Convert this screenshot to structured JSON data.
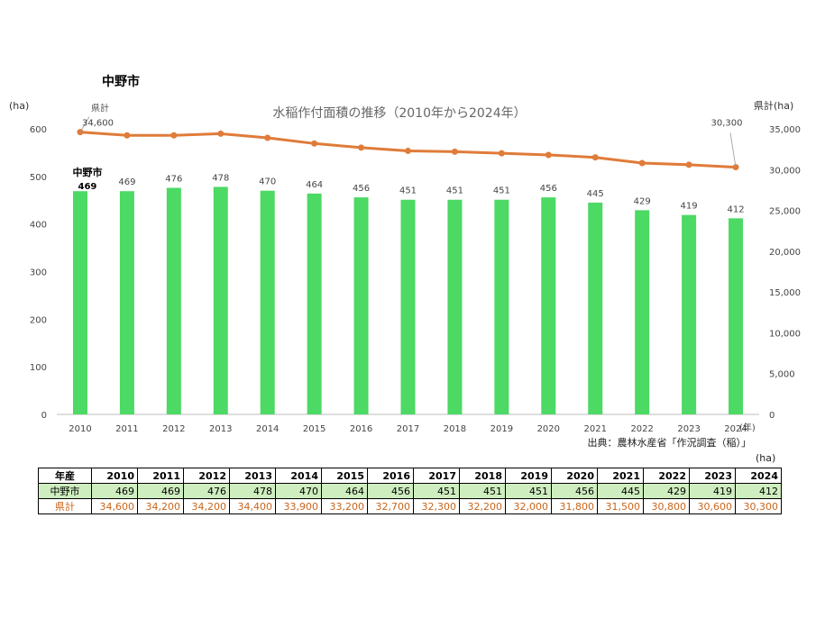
{
  "page": {
    "city_title": "中野市",
    "table_unit": "(ha)"
  },
  "chart_data": {
    "type": "bar+line",
    "title": "水稲作付面積の推移（2010年から2024年）",
    "categories": [
      "2010",
      "2011",
      "2012",
      "2013",
      "2014",
      "2015",
      "2016",
      "2017",
      "2018",
      "2019",
      "2020",
      "2021",
      "2022",
      "2023",
      "2024"
    ],
    "series": [
      {
        "name": "中野市",
        "type": "bar",
        "axis": "left",
        "color": "#4cd964",
        "values": [
          469,
          469,
          476,
          478,
          470,
          464,
          456,
          451,
          451,
          451,
          456,
          445,
          429,
          419,
          412
        ]
      },
      {
        "name": "県計",
        "type": "line",
        "axis": "right",
        "color": "#e07b39",
        "values": [
          34600,
          34200,
          34200,
          34400,
          33900,
          33200,
          32700,
          32300,
          32200,
          32000,
          31800,
          31500,
          30800,
          30600,
          30300
        ]
      }
    ],
    "left_axis": {
      "unit": "(ha)",
      "ylim": [
        0,
        600
      ],
      "ticks": [
        "0",
        "100",
        "200",
        "300",
        "400",
        "500",
        "600"
      ],
      "tick_values": [
        0,
        100,
        200,
        300,
        400,
        500,
        600
      ]
    },
    "right_axis": {
      "unit": "県計(ha)",
      "ylim": [
        0,
        35000
      ],
      "ticks": [
        "0",
        "5,000",
        "10,000",
        "15,000",
        "20,000",
        "25,000",
        "30,000",
        "35,000"
      ],
      "tick_values": [
        0,
        5000,
        10000,
        15000,
        20000,
        25000,
        30000,
        35000
      ]
    },
    "x_unit": "(年)",
    "annotations": {
      "bar_series_label": "中野市",
      "bar_first_label": "469",
      "line_series_label": "県計",
      "line_first_label": "34,600",
      "line_last_label": "30,300"
    },
    "source": "出典：農林水産省「作況調査（稲）」"
  },
  "table": {
    "header_label": "年産",
    "years": [
      "2010",
      "2011",
      "2012",
      "2013",
      "2014",
      "2015",
      "2016",
      "2017",
      "2018",
      "2019",
      "2020",
      "2021",
      "2022",
      "2023",
      "2024"
    ],
    "rows": [
      {
        "label": "中野市",
        "values": [
          "469",
          "469",
          "476",
          "478",
          "470",
          "464",
          "456",
          "451",
          "451",
          "451",
          "456",
          "445",
          "429",
          "419",
          "412"
        ]
      },
      {
        "label": "県計",
        "values": [
          "34,600",
          "34,200",
          "34,200",
          "34,400",
          "33,900",
          "33,200",
          "32,700",
          "32,300",
          "32,200",
          "32,000",
          "31,800",
          "31,500",
          "30,800",
          "30,600",
          "30,300"
        ]
      }
    ]
  }
}
